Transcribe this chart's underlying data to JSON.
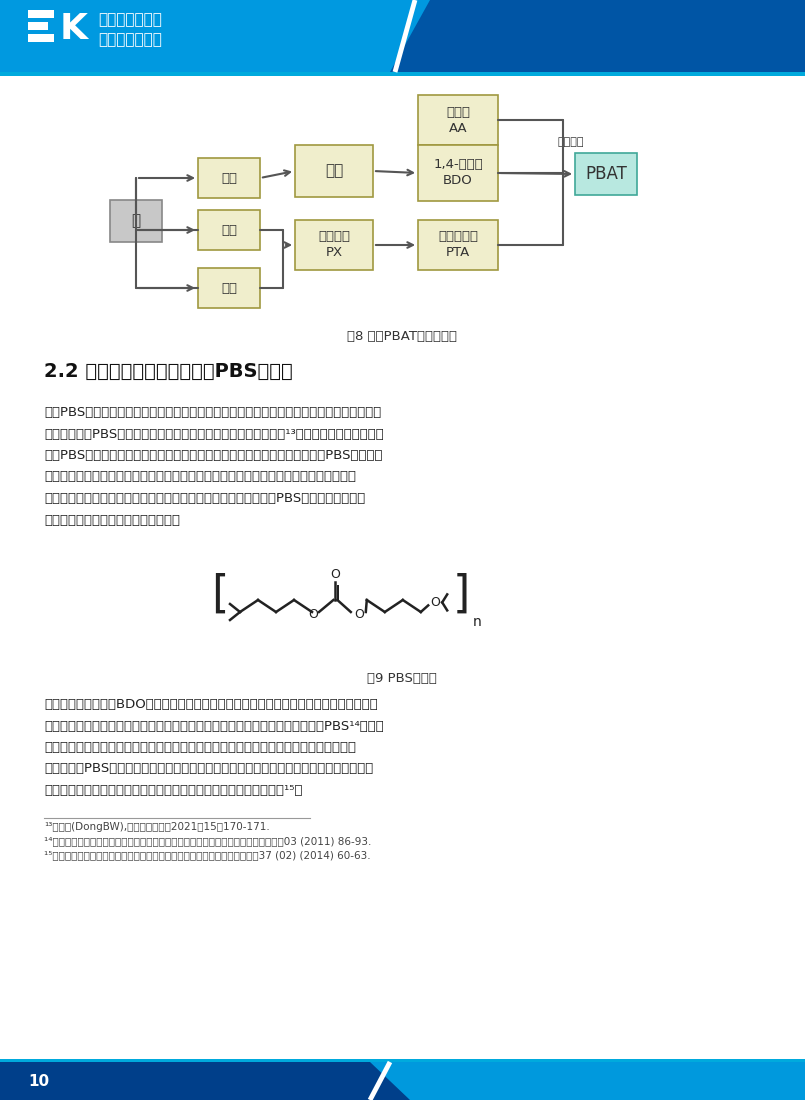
{
  "page_bg": "#ffffff",
  "header_bg1": "#0099e0",
  "header_bg2": "#0055a5",
  "header_line": "#00aadd",
  "footer_bg1": "#003f8a",
  "footer_bg2": "#0099dd",
  "logo_text1": "煤基生物可降解",
  "logo_text2": "塑料产业白皮书",
  "footer_num": "10",
  "section_title": "2.2 煤制聚丁二酸丁二醇酯（PBS）技术",
  "fig8_caption": "图8 煤制PBAT流程示意图",
  "fig9_caption": "图9 PBS结构式",
  "body_text1_lines": [
    "　　PBS是一种脂肪族聚酯类生物可降解塑料，可完全生物降解，具有良好的生物相容性和生",
    "物可吸收性。PBS的制备方法包括扩链法、酵交换法及直接酵化法¹³。扩链法可得到较高分子",
    "量的PBS产物，但其生物安全性及生物可降解性较差。酵交换法可较好地控制PBS产物的结",
    "构，但该方法生产成本较高，且合成过程中产生的废液如处理不当会对环境造成一定的污",
    "染。直接酵化法合成工艺步骤简单、成本较低、无污染，且合成的PBS产物分子量最为理",
    "想，是工业生产中最广泛使用的方法。"
  ],
  "body_text2_lines": [
    "　　直接酵化法采用BDO和丁二酸为原料单体，先在较低的反应温度下发生酵化反应脂水形",
    "成羟基端封的低聚物，然后在高温、高真空和催化剂存在下脱二元醇，即可得到PBS¹⁴。根据",
    "聚合方法不同，直接酵化法又可分为溶液聚合法和熳融缩聚法，溶液聚合法的反应温度较",
    "低，可阻止PBS产物的氧化，但反应时间较长，且产物的分子量也不是十分理想。目前普遍",
    "采用的是熳融缩聚法，催化剂主要包括稀土类、针酸酩类、锡基类等¹⁵。"
  ],
  "footnote1": "¹³董博文(DongBW),当代化工研究，2021，15：170-171.",
  "footnote2": "¹⁴官馓，张世平，党娑，史素青，宫永宽，聚丁二酸丁二醇酯的研究进展，高分子通报03 (2011) 86-93.",
  "footnote3": "¹⁵刘洪武，李长存，郑瑋，聚丁二酸丁二醇酯产业现状及技术进展，合成纤维37 (02) (2014) 60-63.",
  "box_yellow": "#f0eecc",
  "box_yellow_border": "#a09840",
  "box_gray": "#c8c8c8",
  "box_gray_border": "#888888",
  "box_cyan": "#b8e8e0",
  "box_cyan_border": "#40a898",
  "arrow_color": "#555555",
  "text_dark": "#222222",
  "text_mid": "#333333"
}
